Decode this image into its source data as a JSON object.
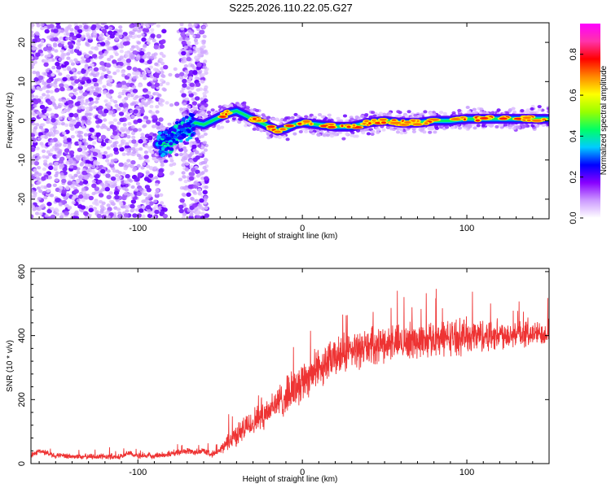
{
  "title": "S225.2026.110.22.05.G27",
  "chart_data": [
    {
      "type": "heatmap",
      "title": "S225.2026.110.22.05.G27",
      "xlabel": "Height of straight line (km)",
      "ylabel": "Frequency (Hz)",
      "xlim": [
        -165,
        150
      ],
      "ylim": [
        -25,
        25
      ],
      "xticks": [
        -100,
        0,
        100
      ],
      "xtick_labels": [
        "-100",
        "0",
        "100"
      ],
      "yticks": [
        -20,
        -10,
        0,
        10,
        20
      ],
      "ytick_labels": [
        "-20",
        "-10",
        "0",
        "10",
        "20"
      ],
      "ridge_line": {
        "x": [
          -85,
          -80,
          -75,
          -70,
          -65,
          -60,
          -55,
          -50,
          -45,
          -40,
          -35,
          -30,
          -25,
          -20,
          -15,
          -10,
          -5,
          0,
          10,
          20,
          30,
          40,
          50,
          60,
          70,
          80,
          90,
          100,
          110,
          120,
          130,
          140,
          150
        ],
        "y": [
          -6,
          -5,
          -3,
          -2,
          -0.5,
          -1,
          0,
          1,
          2,
          2.5,
          1.5,
          0.5,
          -0.5,
          -1.5,
          -2.5,
          -2,
          -1,
          -0.5,
          -1,
          -1.5,
          -1.5,
          -0.5,
          0,
          -0.5,
          -0.5,
          0,
          0,
          0.5,
          0.5,
          0.5,
          0.5,
          0.5,
          0.5
        ]
      },
      "noise_region_x": [
        -165,
        -55
      ],
      "colorbar": {
        "label": "Normalized spectral amplitude",
        "range": [
          0,
          0.95
        ],
        "ticks": [
          0.0,
          0.2,
          0.4,
          0.6,
          0.8
        ],
        "tick_labels": [
          "0.0",
          "0.2",
          "0.4",
          "0.6",
          "0.8"
        ],
        "colors": [
          "#ffffff",
          "#cc99ff",
          "#8800ff",
          "#0000ff",
          "#00ccff",
          "#00ff66",
          "#99ff00",
          "#ffff00",
          "#ff8800",
          "#ff0000",
          "#ff33aa",
          "#ff00ff"
        ]
      }
    },
    {
      "type": "line",
      "xlabel": "Height of straight line (km)",
      "ylabel": "SNR (10 * v/v)",
      "xlim": [
        -165,
        150
      ],
      "ylim": [
        0,
        610
      ],
      "xticks": [
        -100,
        0,
        100
      ],
      "xtick_labels": [
        "-100",
        "0",
        "100"
      ],
      "yticks": [
        0,
        200,
        400,
        600
      ],
      "ytick_labels": [
        "0",
        "200",
        "400",
        "600"
      ],
      "color": "#ee3333",
      "trend": {
        "x": [
          -165,
          -160,
          -150,
          -140,
          -130,
          -120,
          -110,
          -105,
          -100,
          -90,
          -80,
          -75,
          -70,
          -65,
          -60,
          -55,
          -50,
          -45,
          -40,
          -35,
          -30,
          -25,
          -20,
          -15,
          -10,
          -5,
          0,
          5,
          10,
          20,
          30,
          40,
          50,
          60,
          70,
          80,
          90,
          100,
          110,
          120,
          130,
          140,
          150
        ],
        "y": [
          25,
          40,
          25,
          22,
          22,
          22,
          22,
          35,
          22,
          25,
          30,
          35,
          40,
          35,
          40,
          30,
          40,
          70,
          90,
          110,
          130,
          150,
          170,
          190,
          210,
          235,
          260,
          280,
          300,
          330,
          350,
          365,
          375,
          380,
          385,
          390,
          395,
          400,
          400,
          405,
          405,
          405,
          410
        ]
      },
      "spread": {
        "x": [
          -165,
          -50,
          -45,
          -20,
          0,
          20,
          50,
          100,
          150
        ],
        "y": [
          10,
          12,
          35,
          60,
          75,
          70,
          65,
          65,
          40
        ]
      }
    }
  ]
}
